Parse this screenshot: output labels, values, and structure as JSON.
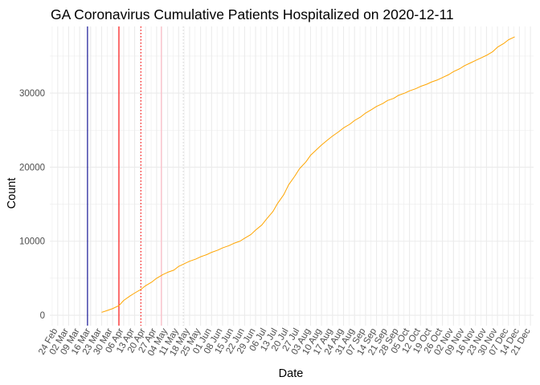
{
  "chart_data": {
    "type": "line",
    "title": "GA Coronavirus Cumulative Patients Hospitalized on 2020-12-11",
    "xlabel": "Date",
    "ylabel": "Count",
    "xlim": [
      "2020-02-19",
      "2020-12-23"
    ],
    "ylim": [
      -1400,
      39000
    ],
    "x_ticks": [
      "2020-02-24",
      "2020-03-02",
      "2020-03-09",
      "2020-03-16",
      "2020-03-23",
      "2020-03-30",
      "2020-04-06",
      "2020-04-13",
      "2020-04-20",
      "2020-04-27",
      "2020-05-04",
      "2020-05-11",
      "2020-05-18",
      "2020-05-25",
      "2020-06-01",
      "2020-06-08",
      "2020-06-15",
      "2020-06-22",
      "2020-06-29",
      "2020-07-06",
      "2020-07-13",
      "2020-07-20",
      "2020-07-27",
      "2020-08-03",
      "2020-08-10",
      "2020-08-17",
      "2020-08-24",
      "2020-08-31",
      "2020-09-07",
      "2020-09-14",
      "2020-09-21",
      "2020-09-28",
      "2020-10-05",
      "2020-10-12",
      "2020-10-19",
      "2020-10-26",
      "2020-11-02",
      "2020-11-09",
      "2020-11-16",
      "2020-11-23",
      "2020-11-30",
      "2020-12-07",
      "2020-12-14",
      "2020-12-21"
    ],
    "x_tick_labels": [
      "24 Feb",
      "02 Mar",
      "09 Mar",
      "16 Mar",
      "23 Mar",
      "30 Mar",
      "06 Apr",
      "13 Apr",
      "20 Apr",
      "27 Apr",
      "04 May",
      "11 May",
      "18 May",
      "25 May",
      "01 Jun",
      "08 Jun",
      "15 Jun",
      "22 Jun",
      "29 Jun",
      "06 Jul",
      "13 Jul",
      "20 Jul",
      "27 Jul",
      "03 Aug",
      "10 Aug",
      "17 Aug",
      "24 Aug",
      "31 Aug",
      "07 Sep",
      "14 Sep",
      "21 Sep",
      "28 Sep",
      "05 Oct",
      "12 Oct",
      "19 Oct",
      "26 Oct",
      "02 Nov",
      "09 Nov",
      "16 Nov",
      "23 Nov",
      "30 Nov",
      "07 Dec",
      "14 Dec",
      "21 Dec"
    ],
    "y_ticks": [
      0,
      10000,
      20000,
      30000
    ],
    "y_tick_labels": [
      "0",
      "10000",
      "20000",
      "30000"
    ],
    "grid": true,
    "colors": {
      "series": "#ffa500",
      "vline_solid_dark": "#00008b",
      "vline_solid_red": "#ff0000",
      "vline_dotted_red": "#ff0000",
      "vline_solid_pink": "#ffb6c1",
      "vline_dotted_gray": "#d3d3d3",
      "grid": "#ebebeb"
    },
    "vlines": [
      {
        "date": "2020-03-14",
        "style": "solid",
        "color": "#00008b"
      },
      {
        "date": "2020-04-03",
        "style": "solid",
        "color": "#ff0000"
      },
      {
        "date": "2020-04-17",
        "style": "dotted",
        "color": "#ff0000"
      },
      {
        "date": "2020-04-30",
        "style": "solid",
        "color": "#ffb6c1"
      },
      {
        "date": "2020-05-14",
        "style": "dotted",
        "color": "#d3d3d3"
      }
    ],
    "series": [
      {
        "x": [
          "2020-03-23",
          "2020-03-26",
          "2020-03-30",
          "2020-04-03",
          "2020-04-06",
          "2020-04-10",
          "2020-04-13",
          "2020-04-17",
          "2020-04-20",
          "2020-04-24",
          "2020-04-27",
          "2020-05-01",
          "2020-05-04",
          "2020-05-08",
          "2020-05-11",
          "2020-05-15",
          "2020-05-18",
          "2020-05-22",
          "2020-05-25",
          "2020-05-29",
          "2020-06-01",
          "2020-06-05",
          "2020-06-08",
          "2020-06-12",
          "2020-06-15",
          "2020-06-19",
          "2020-06-22",
          "2020-06-26",
          "2020-06-29",
          "2020-07-03",
          "2020-07-06",
          "2020-07-10",
          "2020-07-13",
          "2020-07-17",
          "2020-07-20",
          "2020-07-24",
          "2020-07-27",
          "2020-07-31",
          "2020-08-03",
          "2020-08-07",
          "2020-08-10",
          "2020-08-14",
          "2020-08-17",
          "2020-08-21",
          "2020-08-24",
          "2020-08-28",
          "2020-08-31",
          "2020-09-04",
          "2020-09-07",
          "2020-09-11",
          "2020-09-14",
          "2020-09-18",
          "2020-09-21",
          "2020-09-25",
          "2020-09-28",
          "2020-10-02",
          "2020-10-05",
          "2020-10-09",
          "2020-10-12",
          "2020-10-16",
          "2020-10-19",
          "2020-10-23",
          "2020-10-26",
          "2020-10-30",
          "2020-11-02",
          "2020-11-06",
          "2020-11-09",
          "2020-11-13",
          "2020-11-16",
          "2020-11-20",
          "2020-11-23",
          "2020-11-27",
          "2020-11-30",
          "2020-12-04",
          "2020-12-07",
          "2020-12-11"
        ],
        "y": [
          400,
          600,
          900,
          1300,
          2000,
          2600,
          3000,
          3500,
          4000,
          4500,
          5000,
          5500,
          5800,
          6100,
          6600,
          7000,
          7300,
          7600,
          7900,
          8200,
          8500,
          8800,
          9100,
          9400,
          9700,
          10000,
          10400,
          10900,
          11500,
          12200,
          13000,
          14000,
          15100,
          16300,
          17600,
          18800,
          19800,
          20700,
          21600,
          22400,
          23000,
          23700,
          24200,
          24800,
          25300,
          25800,
          26300,
          26800,
          27300,
          27800,
          28200,
          28600,
          29000,
          29300,
          29700,
          30000,
          30300,
          30600,
          30900,
          31200,
          31500,
          31800,
          32100,
          32500,
          32900,
          33300,
          33700,
          34100,
          34400,
          34800,
          35100,
          35600,
          36200,
          36700,
          37200,
          37600
        ]
      }
    ]
  }
}
